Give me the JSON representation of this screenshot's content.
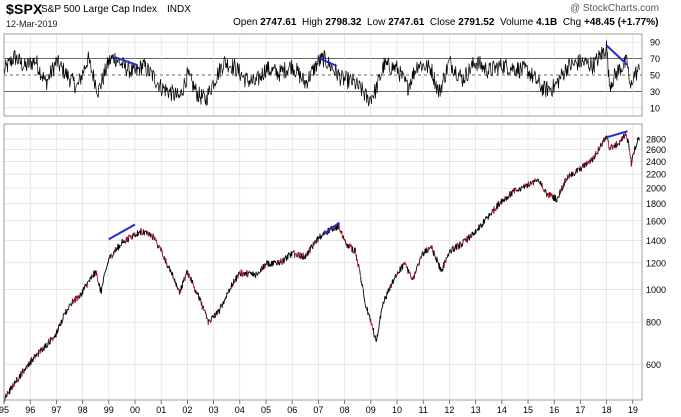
{
  "header": {
    "ticker": "$SPX",
    "name": "S&P 500 Large Cap Index",
    "exchange": "INDX",
    "date": "12-Mar-2019",
    "watermark": "@ StockCharts.com",
    "quote": {
      "open_label": "Open",
      "open": "2747.61",
      "high_label": "High",
      "high": "2798.32",
      "low_label": "Low",
      "low": "2747.61",
      "close_label": "Close",
      "close": "2791.52",
      "volume_label": "Volume",
      "volume": "4.1B",
      "chg_label": "Chg",
      "chg": "+48.45 (+1.77%)"
    }
  },
  "colors": {
    "price_line": "#000000",
    "price_down": "#c8102e",
    "trendline": "#1f2fd0",
    "rsi_line": "#000000",
    "rsi_fill": "#8a8a8a",
    "grid": "#d9d9d9",
    "axis": "#555555"
  },
  "chart_data": [
    {
      "type": "line",
      "panel": "indicator",
      "ylim": [
        0,
        100
      ],
      "y_ticks": [
        "90",
        "70",
        "50",
        "30",
        "10"
      ],
      "y_tick_values": [
        90,
        70,
        50,
        30,
        10
      ],
      "reference_lines": [
        70,
        50,
        30
      ],
      "anchors": [
        [
          1995.0,
          55
        ],
        [
          1995.4,
          72
        ],
        [
          1995.8,
          60
        ],
        [
          1996.2,
          68
        ],
        [
          1996.6,
          40
        ],
        [
          1997.0,
          66
        ],
        [
          1997.4,
          50
        ],
        [
          1997.8,
          35
        ],
        [
          1998.2,
          70
        ],
        [
          1998.6,
          30
        ],
        [
          1999.0,
          66
        ],
        [
          1999.2,
          72
        ],
        [
          1999.6,
          60
        ],
        [
          2000.0,
          52
        ],
        [
          2000.3,
          62
        ],
        [
          2000.7,
          48
        ],
        [
          2001.0,
          35
        ],
        [
          2001.3,
          30
        ],
        [
          2001.7,
          22
        ],
        [
          2002.0,
          50
        ],
        [
          2002.4,
          26
        ],
        [
          2002.7,
          20
        ],
        [
          2003.0,
          42
        ],
        [
          2003.4,
          66
        ],
        [
          2003.8,
          60
        ],
        [
          2004.2,
          45
        ],
        [
          2004.6,
          40
        ],
        [
          2005.0,
          58
        ],
        [
          2005.5,
          52
        ],
        [
          2006.0,
          62
        ],
        [
          2006.5,
          40
        ],
        [
          2007.0,
          66
        ],
        [
          2007.2,
          70
        ],
        [
          2007.6,
          56
        ],
        [
          2007.9,
          45
        ],
        [
          2008.3,
          42
        ],
        [
          2008.7,
          30
        ],
        [
          2008.9,
          18
        ],
        [
          2009.2,
          32
        ],
        [
          2009.5,
          62
        ],
        [
          2010.0,
          58
        ],
        [
          2010.4,
          35
        ],
        [
          2010.8,
          64
        ],
        [
          2011.3,
          58
        ],
        [
          2011.6,
          28
        ],
        [
          2012.0,
          66
        ],
        [
          2012.5,
          45
        ],
        [
          2013.0,
          66
        ],
        [
          2013.5,
          55
        ],
        [
          2014.0,
          62
        ],
        [
          2014.5,
          58
        ],
        [
          2015.0,
          55
        ],
        [
          2015.6,
          32
        ],
        [
          2016.0,
          35
        ],
        [
          2016.5,
          60
        ],
        [
          2017.0,
          66
        ],
        [
          2017.5,
          62
        ],
        [
          2017.9,
          80
        ],
        [
          2018.0,
          88
        ],
        [
          2018.1,
          38
        ],
        [
          2018.5,
          58
        ],
        [
          2018.8,
          66
        ],
        [
          2018.9,
          30
        ],
        [
          2019.0,
          48
        ],
        [
          2019.2,
          55
        ]
      ],
      "trendlines": [
        {
          "from": [
            1999.2,
            72
          ],
          "to": [
            2000.1,
            62
          ]
        },
        {
          "from": [
            2007.0,
            71
          ],
          "to": [
            2007.7,
            61
          ]
        },
        {
          "from": [
            2018.0,
            86
          ],
          "to": [
            2018.8,
            62
          ]
        }
      ]
    },
    {
      "type": "line",
      "panel": "price",
      "y_scale": "log",
      "ylim": [
        470,
        3100
      ],
      "y_ticks": [
        "2800",
        "2600",
        "2400",
        "2200",
        "2000",
        "1800",
        "1600",
        "1400",
        "1200",
        "1000",
        "800",
        "600"
      ],
      "y_tick_values": [
        2800,
        2600,
        2400,
        2200,
        2000,
        1800,
        1600,
        1400,
        1200,
        1000,
        800,
        600
      ],
      "x_ticks": [
        "95",
        "96",
        "97",
        "98",
        "99",
        "00",
        "01",
        "02",
        "03",
        "04",
        "05",
        "06",
        "07",
        "08",
        "09",
        "10",
        "11",
        "12",
        "13",
        "14",
        "15",
        "16",
        "17",
        "18",
        "19"
      ],
      "x_tick_values": [
        1995,
        1996,
        1997,
        1998,
        1999,
        2000,
        2001,
        2002,
        2003,
        2004,
        2005,
        2006,
        2007,
        2008,
        2009,
        2010,
        2011,
        2012,
        2013,
        2014,
        2015,
        2016,
        2017,
        2018,
        2019
      ],
      "xlim": [
        1995.0,
        2019.35
      ],
      "anchors": [
        [
          1995.0,
          470
        ],
        [
          1995.5,
          540
        ],
        [
          1996.0,
          610
        ],
        [
          1996.5,
          670
        ],
        [
          1997.0,
          740
        ],
        [
          1997.5,
          900
        ],
        [
          1997.9,
          960
        ],
        [
          1998.5,
          1130
        ],
        [
          1998.7,
          980
        ],
        [
          1999.0,
          1230
        ],
        [
          1999.5,
          1380
        ],
        [
          1999.9,
          1440
        ],
        [
          2000.2,
          1490
        ],
        [
          2000.7,
          1430
        ],
        [
          2001.0,
          1300
        ],
        [
          2001.3,
          1160
        ],
        [
          2001.7,
          980
        ],
        [
          2002.0,
          1130
        ],
        [
          2002.5,
          920
        ],
        [
          2002.8,
          800
        ],
        [
          2003.2,
          860
        ],
        [
          2003.6,
          1000
        ],
        [
          2004.0,
          1120
        ],
        [
          2004.6,
          1110
        ],
        [
          2005.0,
          1190
        ],
        [
          2005.6,
          1210
        ],
        [
          2006.0,
          1280
        ],
        [
          2006.5,
          1250
        ],
        [
          2007.0,
          1420
        ],
        [
          2007.5,
          1520
        ],
        [
          2007.8,
          1540
        ],
        [
          2008.0,
          1380
        ],
        [
          2008.4,
          1300
        ],
        [
          2008.8,
          900
        ],
        [
          2009.2,
          700
        ],
        [
          2009.5,
          920
        ],
        [
          2010.0,
          1120
        ],
        [
          2010.3,
          1190
        ],
        [
          2010.6,
          1060
        ],
        [
          2011.0,
          1280
        ],
        [
          2011.3,
          1340
        ],
        [
          2011.7,
          1130
        ],
        [
          2012.0,
          1300
        ],
        [
          2012.5,
          1370
        ],
        [
          2013.0,
          1480
        ],
        [
          2013.5,
          1650
        ],
        [
          2014.0,
          1840
        ],
        [
          2014.5,
          1960
        ],
        [
          2015.0,
          2050
        ],
        [
          2015.4,
          2110
        ],
        [
          2015.7,
          1920
        ],
        [
          2016.1,
          1860
        ],
        [
          2016.5,
          2150
        ],
        [
          2017.0,
          2280
        ],
        [
          2017.5,
          2450
        ],
        [
          2018.0,
          2850
        ],
        [
          2018.1,
          2620
        ],
        [
          2018.5,
          2720
        ],
        [
          2018.75,
          2920
        ],
        [
          2018.95,
          2350
        ],
        [
          2019.0,
          2500
        ],
        [
          2019.2,
          2800
        ]
      ],
      "trendlines": [
        {
          "from": [
            1999.0,
            1410
          ],
          "to": [
            2000.0,
            1560
          ]
        },
        {
          "from": [
            2007.2,
            1460
          ],
          "to": [
            2007.8,
            1580
          ]
        },
        {
          "from": [
            2018.0,
            2830
          ],
          "to": [
            2018.8,
            2950
          ]
        }
      ]
    }
  ]
}
